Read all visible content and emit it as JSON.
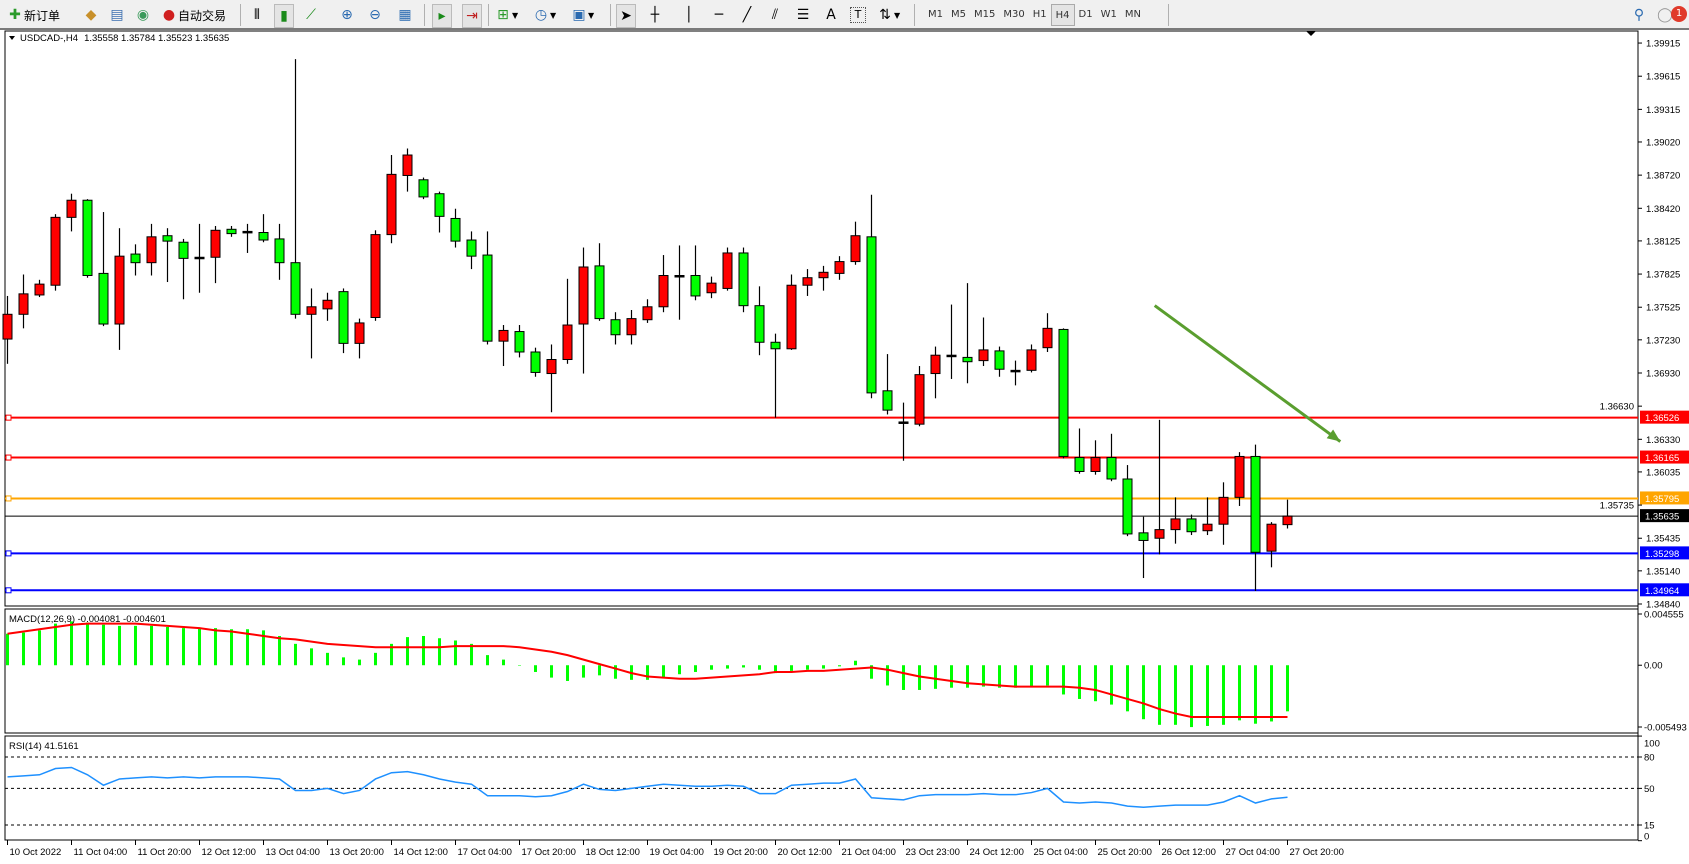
{
  "toolbar": {
    "new_order": "新订单",
    "auto_trading": "自动交易",
    "timeframes": [
      "M1",
      "M5",
      "M15",
      "M30",
      "H1",
      "H4",
      "D1",
      "W1",
      "MN"
    ],
    "active_timeframe": "H4",
    "drawing_tools": {
      "text": "A",
      "label": "T"
    },
    "notification_count": "1"
  },
  "colors": {
    "bull": "#ff0000",
    "bear": "#00ff00",
    "macd_hist": "#00ff00",
    "macd_signal": "#ff0000",
    "rsi": "#1e90ff",
    "arrow": "#5a9e2f"
  },
  "chart_data": [
    {
      "type": "candlestick",
      "symbol": "USDCAD-,H4",
      "ohlc_readout": "1.35558 1.35784 1.35523 1.35635",
      "ylim": [
        1.34822,
        1.40024
      ],
      "price_ticks": [
        "1.39915",
        "1.39615",
        "1.39315",
        "1.39020",
        "1.38720",
        "1.38420",
        "1.38125",
        "1.37825",
        "1.37525",
        "1.37230",
        "1.36930",
        "1.36630",
        "1.36330",
        "1.36035",
        "1.35735",
        "1.35435",
        "1.35140",
        "1.34840"
      ],
      "time_labels": [
        "10 Oct 2022",
        "11 Oct 04:00",
        "11 Oct 20:00",
        "12 Oct 12:00",
        "13 Oct 04:00",
        "13 Oct 20:00",
        "14 Oct 12:00",
        "17 Oct 04:00",
        "17 Oct 20:00",
        "18 Oct 12:00",
        "19 Oct 04:00",
        "19 Oct 20:00",
        "20 Oct 12:00",
        "21 Oct 04:00",
        "23 Oct 23:00",
        "24 Oct 12:00",
        "25 Oct 04:00",
        "25 Oct 20:00",
        "26 Oct 12:00",
        "27 Oct 04:00",
        "27 Oct 20:00"
      ],
      "time_label_every_bars": 4,
      "ohlc": [
        [
          1.37237,
          1.37627,
          1.37013,
          1.37461
        ],
        [
          1.37461,
          1.37821,
          1.37334,
          1.37646
        ],
        [
          1.37636,
          1.37773,
          1.37617,
          1.37734
        ],
        [
          1.37724,
          1.38367,
          1.37675,
          1.38338
        ],
        [
          1.38338,
          1.38552,
          1.38211,
          1.38493
        ],
        [
          1.38493,
          1.38503,
          1.37792,
          1.37812
        ],
        [
          1.37831,
          1.38386,
          1.37354,
          1.37373
        ],
        [
          1.37373,
          1.3824,
          1.37139,
          1.37987
        ],
        [
          1.38006,
          1.38094,
          1.37812,
          1.37928
        ],
        [
          1.37928,
          1.38279,
          1.37812,
          1.38162
        ],
        [
          1.38172,
          1.3824,
          1.37753,
          1.38123
        ],
        [
          1.38113,
          1.38143,
          1.37597,
          1.37967
        ],
        [
          1.37977,
          1.38279,
          1.37656,
          1.37977
        ],
        [
          1.37977,
          1.3826,
          1.37743,
          1.38221
        ],
        [
          1.3823,
          1.3826,
          1.38162,
          1.38191
        ],
        [
          1.38211,
          1.38279,
          1.38016,
          1.38211
        ],
        [
          1.38201,
          1.38367,
          1.38113,
          1.38133
        ],
        [
          1.38143,
          1.38279,
          1.37773,
          1.37928
        ],
        [
          1.37928,
          1.39769,
          1.37422,
          1.37461
        ],
        [
          1.37461,
          1.37695,
          1.37062,
          1.37529
        ],
        [
          1.3751,
          1.37656,
          1.37402,
          1.37588
        ],
        [
          1.37666,
          1.37695,
          1.3711,
          1.37198
        ],
        [
          1.37198,
          1.37422,
          1.37062,
          1.37383
        ],
        [
          1.37432,
          1.38221,
          1.37402,
          1.38182
        ],
        [
          1.38182,
          1.38902,
          1.38104,
          1.38727
        ],
        [
          1.38717,
          1.38961,
          1.38571,
          1.38902
        ],
        [
          1.38678,
          1.38698,
          1.38503,
          1.38523
        ],
        [
          1.38552,
          1.38571,
          1.38201,
          1.38347
        ],
        [
          1.38328,
          1.38416,
          1.38065,
          1.38123
        ],
        [
          1.38133,
          1.38211,
          1.3787,
          1.37987
        ],
        [
          1.37997,
          1.38211,
          1.37188,
          1.37218
        ],
        [
          1.37218,
          1.37364,
          1.36993,
          1.37315
        ],
        [
          1.37305,
          1.37364,
          1.37071,
          1.3712
        ],
        [
          1.3712,
          1.37159,
          1.36896,
          1.36935
        ],
        [
          1.36925,
          1.37188,
          1.36575,
          1.37052
        ],
        [
          1.37052,
          1.37782,
          1.37013,
          1.37364
        ],
        [
          1.37373,
          1.38065,
          1.36925,
          1.37889
        ],
        [
          1.37899,
          1.38104,
          1.37402,
          1.37422
        ],
        [
          1.37412,
          1.3748,
          1.37188,
          1.37276
        ],
        [
          1.37276,
          1.375,
          1.37188,
          1.37422
        ],
        [
          1.37412,
          1.37597,
          1.37383,
          1.37529
        ],
        [
          1.37529,
          1.37997,
          1.3748,
          1.37812
        ],
        [
          1.37812,
          1.38084,
          1.37412,
          1.37812
        ],
        [
          1.37812,
          1.38084,
          1.37588,
          1.37627
        ],
        [
          1.37656,
          1.37802,
          1.37607,
          1.37743
        ],
        [
          1.37695,
          1.38065,
          1.37675,
          1.38016
        ],
        [
          1.38016,
          1.38065,
          1.3748,
          1.37539
        ],
        [
          1.37539,
          1.37714,
          1.37091,
          1.37208
        ],
        [
          1.37208,
          1.37286,
          1.36526,
          1.37149
        ],
        [
          1.37149,
          1.37821,
          1.37139,
          1.37724
        ],
        [
          1.37724,
          1.3787,
          1.37627,
          1.37792
        ],
        [
          1.37792,
          1.37899,
          1.37675,
          1.37841
        ],
        [
          1.37831,
          1.37987,
          1.37773,
          1.37938
        ],
        [
          1.37938,
          1.38299,
          1.37909,
          1.38172
        ],
        [
          1.38162,
          1.38542,
          1.36701,
          1.3675
        ],
        [
          1.36769,
          1.37101,
          1.36555,
          1.36594
        ],
        [
          1.36487,
          1.36662,
          1.36136,
          1.36487
        ],
        [
          1.36467,
          1.36993,
          1.36448,
          1.36915
        ],
        [
          1.36925,
          1.37169,
          1.36701,
          1.37091
        ],
        [
          1.37091,
          1.37549,
          1.36876,
          1.37091
        ],
        [
          1.37071,
          1.37743,
          1.36837,
          1.37032
        ],
        [
          1.37042,
          1.37432,
          1.36993,
          1.37139
        ],
        [
          1.3713,
          1.37169,
          1.36896,
          1.36964
        ],
        [
          1.36954,
          1.37042,
          1.36818,
          1.36954
        ],
        [
          1.36954,
          1.37188,
          1.36935,
          1.37139
        ],
        [
          1.37159,
          1.37471,
          1.3712,
          1.37334
        ],
        [
          1.37324,
          1.37334,
          1.36156,
          1.36175
        ],
        [
          1.36165,
          1.36428,
          1.36019,
          1.36039
        ],
        [
          1.36039,
          1.36321,
          1.3601,
          1.36165
        ],
        [
          1.36165,
          1.3638,
          1.35951,
          1.35971
        ],
        [
          1.35971,
          1.36097,
          1.35454,
          1.35474
        ],
        [
          1.35484,
          1.3563,
          1.35075,
          1.35415
        ],
        [
          1.35435,
          1.36506,
          1.35289,
          1.35513
        ],
        [
          1.35513,
          1.35805,
          1.35386,
          1.3561
        ],
        [
          1.3561,
          1.35649,
          1.35464,
          1.35494
        ],
        [
          1.35503,
          1.35805,
          1.35464,
          1.35562
        ],
        [
          1.35562,
          1.35941,
          1.35376,
          1.35805
        ],
        [
          1.35805,
          1.36214,
          1.35727,
          1.36175
        ],
        [
          1.36175,
          1.36282,
          1.34958,
          1.35308
        ],
        [
          1.35318,
          1.35581,
          1.35172,
          1.35562
        ],
        [
          1.35558,
          1.35784,
          1.35523,
          1.35635
        ]
      ],
      "levels": [
        {
          "price": "1.36526",
          "color": "#ff0000",
          "text_color": "#ffffff"
        },
        {
          "price": "1.36165",
          "color": "#ff0000",
          "text_color": "#ffffff"
        },
        {
          "price": "1.35795",
          "color": "#ffa500",
          "text_color": "#ffffff"
        },
        {
          "price": "1.35298",
          "color": "#0000ff",
          "text_color": "#ffffff"
        },
        {
          "price": "1.34964",
          "color": "#0000ff",
          "text_color": "#ffffff"
        }
      ],
      "bid": {
        "price": "1.35635",
        "color": "#000000"
      },
      "trend_arrow": {
        "from": [
          71.7,
          1.3754
        ],
        "to": [
          83.3,
          1.3631
        ]
      }
    },
    {
      "type": "bar",
      "label": "MACD(12,26,9) -0.004081 -0.004601",
      "ylim": [
        -0.005493,
        0.004555
      ],
      "ticks": [
        "0.004555",
        "0.00",
        "-0.005493"
      ],
      "histogram": [
        0.0028,
        0.0029,
        0.0031,
        0.0037,
        0.0039,
        0.0038,
        0.0036,
        0.0035,
        0.0035,
        0.0035,
        0.0034,
        0.0033,
        0.0033,
        0.0033,
        0.0032,
        0.0032,
        0.0031,
        0.0026,
        0.0019,
        0.0015,
        0.0011,
        0.0007,
        0.0005,
        0.0011,
        0.0019,
        0.0025,
        0.0026,
        0.0024,
        0.0022,
        0.0019,
        0.0009,
        0.0005,
        0.0,
        -0.0006,
        -0.0011,
        -0.0014,
        -0.0011,
        -0.0009,
        -0.0012,
        -0.0013,
        -0.0013,
        -0.0011,
        -0.0008,
        -0.0006,
        -0.0004,
        -0.0003,
        -0.0002,
        -0.0004,
        -0.0007,
        -0.0005,
        -0.0004,
        -0.0003,
        -0.0001,
        0.0004,
        -0.0012,
        -0.0018,
        -0.0022,
        -0.0022,
        -0.0021,
        -0.002,
        -0.002,
        -0.0019,
        -0.002,
        -0.002,
        -0.0019,
        -0.0018,
        -0.0026,
        -0.003,
        -0.0032,
        -0.0035,
        -0.0041,
        -0.0048,
        -0.0053,
        -0.0053,
        -0.0055,
        -0.0054,
        -0.0053,
        -0.0049,
        -0.0052,
        -0.005,
        -0.0041
      ],
      "signal": [
        0.0028,
        0.003,
        0.0032,
        0.0034,
        0.0036,
        0.0037,
        0.0037,
        0.0037,
        0.0037,
        0.0036,
        0.0035,
        0.0034,
        0.0033,
        0.0031,
        0.003,
        0.0028,
        0.0026,
        0.0024,
        0.0023,
        0.0021,
        0.0019,
        0.0018,
        0.0017,
        0.0016,
        0.0016,
        0.0016,
        0.0016,
        0.0016,
        0.0017,
        0.0017,
        0.0017,
        0.0017,
        0.0016,
        0.0014,
        0.0012,
        0.0009,
        0.0005,
        0.0001,
        -0.0003,
        -0.0007,
        -0.001,
        -0.0011,
        -0.0012,
        -0.0012,
        -0.0011,
        -0.001,
        -0.0009,
        -0.0008,
        -0.0006,
        -0.0006,
        -0.0005,
        -0.0005,
        -0.0004,
        -0.0003,
        -0.0002,
        -0.0004,
        -0.0007,
        -0.001,
        -0.0012,
        -0.0014,
        -0.0016,
        -0.0017,
        -0.0018,
        -0.0019,
        -0.0019,
        -0.0019,
        -0.0019,
        -0.002,
        -0.0022,
        -0.0026,
        -0.003,
        -0.0034,
        -0.0039,
        -0.0043,
        -0.0046,
        -0.0046,
        -0.0046,
        -0.0046,
        -0.0046,
        -0.0046,
        -0.0046
      ]
    },
    {
      "type": "line",
      "label": "RSI(14) 41.5161",
      "ylim": [
        0,
        100
      ],
      "ticks": [
        "100",
        "80",
        "50",
        "15",
        "0"
      ],
      "levels": [
        80,
        50,
        15
      ],
      "values": [
        61,
        62,
        63,
        69,
        70,
        63,
        53,
        59,
        60,
        61,
        60,
        61,
        60,
        61,
        61,
        61,
        60,
        59,
        48,
        48,
        50,
        45,
        48,
        59,
        65,
        66,
        63,
        59,
        56,
        54,
        43,
        43,
        43,
        42,
        43,
        47,
        54,
        49,
        48,
        50,
        52,
        54,
        53,
        52,
        52,
        53,
        52,
        45,
        45,
        53,
        54,
        55,
        55,
        59,
        41,
        40,
        39,
        43,
        44,
        44,
        44,
        45,
        44,
        44,
        46,
        50,
        37,
        36,
        37,
        36,
        33,
        32,
        33,
        34,
        34,
        34,
        37,
        43,
        36,
        40,
        41.5161
      ]
    }
  ]
}
